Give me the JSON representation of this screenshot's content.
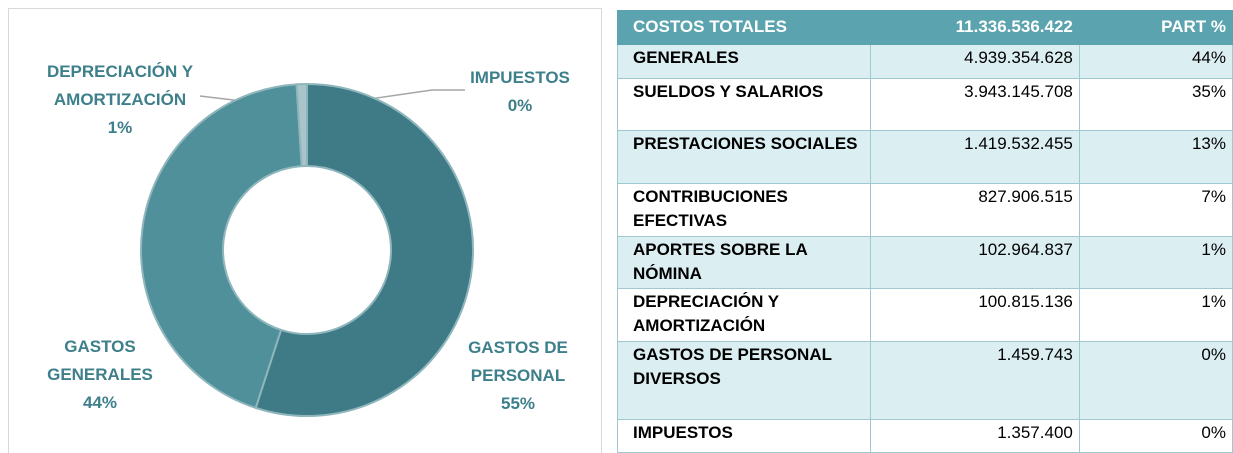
{
  "chart_data": {
    "type": "donut",
    "categories": [
      "GASTOS DE PERSONAL",
      "GASTOS GENERALES",
      "DEPRECIACIÓN Y AMORTIZACIÓN",
      "IMPUESTOS"
    ],
    "values": [
      55,
      44,
      1,
      0
    ],
    "value_labels": [
      "55%",
      "44%",
      "1%",
      "0%"
    ],
    "colors": [
      "#3f7b86",
      "#4f909b",
      "#a9c5c9",
      "#c9dadc"
    ]
  },
  "table": {
    "header": [
      "COSTOS TOTALES",
      "11.336.536.422",
      "PART %"
    ],
    "rows": [
      [
        "GENERALES",
        "4.939.354.628",
        "44%"
      ],
      [
        "SUELDOS Y SALARIOS",
        "3.943.145.708",
        "35%"
      ],
      [
        "PRESTACIONES SOCIALES",
        "1.419.532.455",
        "13%"
      ],
      [
        "CONTRIBUCIONES EFECTIVAS",
        "827.906.515",
        "7%"
      ],
      [
        "APORTES SOBRE LA NÓMINA",
        "102.964.837",
        "1%"
      ],
      [
        "DEPRECIACIÓN Y AMORTIZACIÓN",
        "100.815.136",
        "1%"
      ],
      [
        "GASTOS DE PERSONAL DIVERSOS",
        "1.459.743",
        "0%"
      ],
      [
        "IMPUESTOS",
        "1.357.400",
        "0%"
      ]
    ]
  }
}
